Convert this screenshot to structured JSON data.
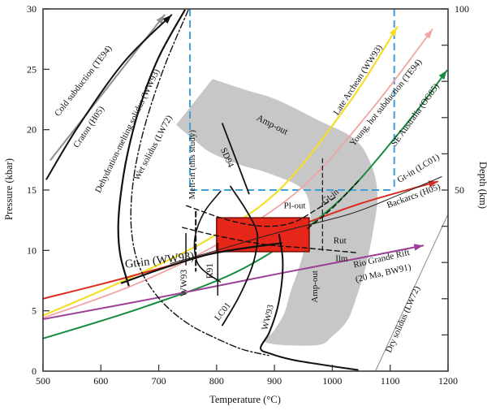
{
  "chart_data": {
    "type": "line",
    "title": "",
    "description": "Pressure-temperature diagram with geotherms, solidus curves, reaction boundaries, an Amp-out field, and a red box marking peak P-T conditions",
    "axes": {
      "x": {
        "label": "Temperature (°C)",
        "min": 500,
        "max": 1200,
        "ticks": [
          500,
          600,
          700,
          800,
          900,
          1000,
          1100,
          1200
        ]
      },
      "y": {
        "label": "Pressure (kbar)",
        "min": 0,
        "max": 30,
        "ticks": [
          0,
          5,
          10,
          15,
          20,
          25,
          30
        ]
      },
      "depth": {
        "label": "Depth (km)",
        "min": 0,
        "max": 100,
        "tick_step_km": 10,
        "labeled_ticks": [
          50,
          100
        ]
      }
    },
    "regions": {
      "amp_out_band": {
        "fill": "#c7c7c7",
        "upper_boundary_TP": [
          [
            793,
            24.2
          ],
          [
            850,
            23.3
          ],
          [
            903,
            22.5
          ],
          [
            975,
            20.8
          ],
          [
            1039,
            19.2
          ],
          [
            1068,
            17.0
          ],
          [
            1078,
            14.5
          ],
          [
            1070,
            11.5
          ],
          [
            1057,
            8.5
          ],
          [
            1043,
            6.3
          ],
          [
            1026,
            4.2
          ],
          [
            1000,
            2.9
          ],
          [
            973,
            2.15
          ]
        ],
        "lower_boundary_TP": [
          [
            730,
            20.4
          ],
          [
            760,
            19.2
          ],
          [
            790,
            18.1
          ],
          [
            840,
            17.1
          ],
          [
            889,
            16.4
          ],
          [
            948,
            15.1
          ],
          [
            962,
            13.1
          ],
          [
            958,
            11.2
          ],
          [
            942,
            8.5
          ],
          [
            928,
            6.6
          ],
          [
            917,
            4.8
          ],
          [
            900,
            3.4
          ],
          [
            887,
            2.35
          ]
        ]
      },
      "pt_result_box": {
        "fill": "#e52619",
        "border": "#7d1008",
        "T_range": [
          800,
          960
        ],
        "P_range": [
          9.9,
          12.7
        ]
      },
      "inset_rectangle": {
        "color": "#3f9fd8",
        "dash": "9 5",
        "T_range": [
          754,
          1107
        ],
        "P_range": [
          15,
          30
        ]
      }
    },
    "geotherms": [
      {
        "name": "cold-subduction-geotherm",
        "color": "#8f8f8f",
        "width": 2,
        "dash": null,
        "arrow": true,
        "points": [
          [
            513,
            17.5
          ],
          [
            610,
            23.4
          ],
          [
            710,
            29.5
          ]
        ]
      },
      {
        "name": "craton-geotherm",
        "color": "#111111",
        "width": 2,
        "dash": null,
        "arrow": true,
        "points": [
          [
            506,
            15.9
          ],
          [
            560,
            20.2
          ],
          [
            640,
            25.6
          ],
          [
            722,
            29.5
          ]
        ]
      },
      {
        "name": "late-archean-geotherm",
        "color": "#f3df2a",
        "width": 2.2,
        "dash": null,
        "arrow": true,
        "points": [
          [
            500,
            4.6
          ],
          [
            640,
            7.5
          ],
          [
            785,
            10.9
          ],
          [
            910,
            15.1
          ],
          [
            1030,
            22.3
          ],
          [
            1112,
            28.5
          ]
        ]
      },
      {
        "name": "young-hot-subduction-geotherm",
        "color": "#f2a3a3",
        "width": 1.8,
        "dash": null,
        "arrow": true,
        "points": [
          [
            500,
            4.4
          ],
          [
            660,
            7.2
          ],
          [
            805,
            10.6
          ],
          [
            945,
            15.1
          ],
          [
            1065,
            21.5
          ],
          [
            1173,
            28.3
          ]
        ]
      },
      {
        "name": "se-australia-geotherm",
        "color": "#178c3e",
        "width": 2,
        "dash": null,
        "arrow": true,
        "points": [
          [
            500,
            2.7
          ],
          [
            680,
            5.4
          ],
          [
            850,
            8.6
          ],
          [
            1000,
            13.6
          ],
          [
            1120,
            20.0
          ],
          [
            1198,
            24.9
          ]
        ]
      },
      {
        "name": "backarcs-geotherm",
        "color": "#d92b1e",
        "width": 2,
        "dash": null,
        "arrow": true,
        "points": [
          [
            500,
            6.0
          ],
          [
            640,
            7.7
          ],
          [
            780,
            9.6
          ],
          [
            920,
            11.7
          ],
          [
            1050,
            13.9
          ],
          [
            1182,
            15.7
          ]
        ]
      },
      {
        "name": "rio-grande-rift-geotherm",
        "color": "#9c3f96",
        "width": 2,
        "dash": null,
        "arrow": true,
        "points": [
          [
            500,
            4.3
          ],
          [
            700,
            6.1
          ],
          [
            910,
            8.1
          ],
          [
            1040,
            9.3
          ],
          [
            1157,
            10.4
          ]
        ]
      }
    ],
    "reaction_curves": [
      {
        "name": "dehydration-melting-solidus",
        "color": "#111111",
        "width": 2.2,
        "dash": null,
        "arrow": false,
        "points": [
          [
            745,
            29.9
          ],
          [
            700,
            26.0
          ],
          [
            668,
            22.0
          ],
          [
            646,
            18.0
          ],
          [
            634,
            14.5
          ],
          [
            630,
            11.8
          ],
          [
            634,
            9.5
          ],
          [
            648,
            7.1
          ]
        ]
      },
      {
        "name": "gt-in-ww93-line",
        "color": "#111111",
        "width": 2.2,
        "dash": null,
        "arrow": false,
        "points": [
          [
            636,
            7.3
          ],
          [
            700,
            8.4
          ],
          [
            780,
            9.6
          ],
          [
            850,
            10.2
          ],
          [
            912,
            10.6
          ]
        ]
      },
      {
        "name": "wet-solidus",
        "color": "#111111",
        "width": 1.4,
        "dash": "8 3 2 3",
        "arrow": false,
        "points": [
          [
            751,
            29.9
          ],
          [
            712,
            25.5
          ],
          [
            680,
            21.0
          ],
          [
            660,
            17.0
          ],
          [
            652,
            13.5
          ],
          [
            655,
            10.8
          ],
          [
            667,
            8.6
          ],
          [
            688,
            6.8
          ],
          [
            717,
            5.2
          ],
          [
            755,
            3.8
          ],
          [
            800,
            2.7
          ],
          [
            845,
            1.8
          ],
          [
            890,
            1.3
          ]
        ]
      },
      {
        "name": "sd94-line",
        "color": "#111111",
        "width": 1.8,
        "dash": null,
        "arrow": false,
        "points": [
          [
            810,
            20.5
          ],
          [
            856,
            14.7
          ]
        ]
      },
      {
        "name": "melt-in-this-study-marker",
        "color": "#111111",
        "width": 2,
        "dash": "6 4",
        "arrow": false,
        "points": [
          [
            764,
            13.2
          ],
          [
            764,
            8.3
          ]
        ]
      },
      {
        "name": "ww93-melt-marker",
        "color": "#111111",
        "width": 1.5,
        "dash": null,
        "arrow": false,
        "points": [
          [
            747,
            11.4
          ],
          [
            747,
            8.8
          ]
        ]
      },
      {
        "name": "r91-melt-marker",
        "color": "#111111",
        "width": 1.5,
        "dash": null,
        "arrow": false,
        "points": [
          [
            802,
            10.6
          ],
          [
            802,
            6.3
          ]
        ]
      },
      {
        "name": "melt-in-curve",
        "color": "#111111",
        "width": 1.6,
        "dash": null,
        "arrow": false,
        "points": [
          [
            807,
            14.9
          ],
          [
            779,
            13.2
          ],
          [
            763,
            11.2
          ],
          [
            764,
            9.4
          ],
          [
            776,
            8.4
          ],
          [
            806,
            7.4
          ]
        ]
      },
      {
        "name": "lc01-curve",
        "color": "#111111",
        "width": 1.8,
        "dash": null,
        "arrow": false,
        "points": [
          [
            824,
            15.3
          ],
          [
            849,
            13.5
          ],
          [
            868,
            11.8
          ],
          [
            870,
            10.5
          ],
          [
            861,
            8.6
          ],
          [
            838,
            6.1
          ],
          [
            810,
            3.8
          ]
        ]
      },
      {
        "name": "ww93-curve",
        "color": "#111111",
        "width": 2,
        "dash": null,
        "arrow": false,
        "points": [
          [
            908,
            11.3
          ],
          [
            914,
            9.4
          ],
          [
            913,
            7.5
          ],
          [
            905,
            5.2
          ],
          [
            891,
            3.2
          ],
          [
            876,
            1.9
          ],
          [
            893,
            1.45
          ],
          [
            930,
            0.95
          ],
          [
            980,
            0.55
          ],
          [
            1044,
            0.1
          ]
        ]
      },
      {
        "name": "gt-in-lc01-line",
        "color": "#222222",
        "width": 1,
        "dash": null,
        "arrow": false,
        "points": [
          [
            720,
            8.9
          ],
          [
            800,
            10.0
          ],
          [
            900,
            11.4
          ],
          [
            1029,
            13.0
          ],
          [
            1110,
            14.5
          ],
          [
            1189,
            16.1
          ]
        ]
      },
      {
        "name": "dry-solidus-line",
        "color": "#8a8a8a",
        "width": 1,
        "dash": null,
        "arrow": false,
        "points": [
          [
            1075,
            0.05
          ],
          [
            1199,
            12.9
          ]
        ]
      },
      {
        "name": "pl-out-curve",
        "color": "#111111",
        "width": 1.4,
        "dash": "6 4",
        "arrow": false,
        "points": [
          [
            748,
            13.7
          ],
          [
            821,
            12.5
          ],
          [
            882,
            12.0
          ],
          [
            931,
            12.3
          ],
          [
            973,
            13.4
          ],
          [
            1005,
            14.4
          ]
        ]
      },
      {
        "name": "rut-ilm-curve",
        "color": "#111111",
        "width": 1.4,
        "dash": "6 4",
        "arrow": false,
        "points": [
          [
            741,
            11.9
          ],
          [
            802,
            11.2
          ],
          [
            882,
            10.5
          ],
          [
            954,
            10.2
          ],
          [
            1044,
            9.8
          ]
        ]
      },
      {
        "name": "gt-in-dashed-line",
        "color": "#111111",
        "width": 1.4,
        "dash": "6 4",
        "arrow": false,
        "points": [
          [
            957,
            11.8
          ],
          [
            1000,
            13.5
          ],
          [
            1046,
            15.8
          ]
        ]
      },
      {
        "name": "vertical-dashed-line",
        "color": "#111111",
        "width": 1.2,
        "dash": "5 4",
        "arrow": false,
        "points": [
          [
            983,
            17.6
          ],
          [
            983,
            9.8
          ]
        ]
      }
    ],
    "labels": [
      {
        "text": "Cold subduction (TE94)",
        "t": 573,
        "p": 23.9,
        "rot": -52,
        "size": 11
      },
      {
        "text": "Craton (H05)",
        "t": 583,
        "p": 20.1,
        "rot": -56,
        "size": 11
      },
      {
        "text": "Dehydration-melting solidus (WW93)",
        "t": 650,
        "p": 19.8,
        "rot": -64,
        "size": 11
      },
      {
        "text": "Wet solidus (LW72)",
        "t": 694,
        "p": 18.4,
        "rot": -62,
        "size": 11
      },
      {
        "text": "Melt-in (this study)",
        "t": 762,
        "p": 17.1,
        "rot": -90,
        "size": 11
      },
      {
        "text": "SD94",
        "t": 814,
        "p": 17.6,
        "rot": 66,
        "size": 11
      },
      {
        "text": "Amp-out",
        "t": 894,
        "p": 20.2,
        "rot": 27,
        "size": 11.5
      },
      {
        "text": "Late Archean (WW93)",
        "t": 1048,
        "p": 24.0,
        "rot": -57,
        "size": 11
      },
      {
        "text": "Young, hot subduction (TE94)",
        "t": 1096,
        "p": 22.1,
        "rot": -51,
        "size": 11
      },
      {
        "text": "SE Australia (OG85)",
        "t": 1147,
        "p": 21.1,
        "rot": -54,
        "size": 11
      },
      {
        "text": "Gt-in (LC01)",
        "t": 1151,
        "p": 16.6,
        "rot": -31,
        "size": 11
      },
      {
        "text": "Backarcs (H05)",
        "t": 1142,
        "p": 14.3,
        "rot": -20,
        "size": 11
      },
      {
        "text": "Gt-in",
        "t": 999,
        "p": 14.3,
        "rot": -38,
        "size": 11
      },
      {
        "text": "Pl-out",
        "t": 935,
        "p": 13.5,
        "rot": 0,
        "size": 11
      },
      {
        "text": "Rut",
        "t": 1013,
        "p": 10.6,
        "rot": 0,
        "size": 11
      },
      {
        "text": "Ilm",
        "t": 1016,
        "p": 9.1,
        "rot": 0,
        "size": 11
      },
      {
        "text": "Gt-in (WW93)",
        "t": 702,
        "p": 8.9,
        "rot": -7,
        "size": 14.5
      },
      {
        "text": "WW93",
        "t": 748,
        "p": 7.3,
        "rot": -90,
        "size": 11.5
      },
      {
        "text": "R91",
        "t": 793,
        "p": 8.3,
        "rot": -90,
        "size": 11.5
      },
      {
        "text": "LC01",
        "t": 814,
        "p": 4.8,
        "rot": -52,
        "size": 11
      },
      {
        "text": "WW93",
        "t": 893,
        "p": 4.4,
        "rot": -76,
        "size": 11
      },
      {
        "text": "Rio Grande Rift",
        "t": 1086,
        "p": 9.1,
        "rot": -13,
        "size": 11
      },
      {
        "text": "(20 Ma, BW91)",
        "t": 1089,
        "p": 7.9,
        "rot": -13,
        "size": 11
      },
      {
        "text": "Dry solidus (LW72)",
        "t": 1126,
        "p": 4.2,
        "rot": -66,
        "size": 11
      },
      {
        "text": "Amp-out",
        "t": 974,
        "p": 7.0,
        "rot": -90,
        "size": 11
      }
    ]
  }
}
